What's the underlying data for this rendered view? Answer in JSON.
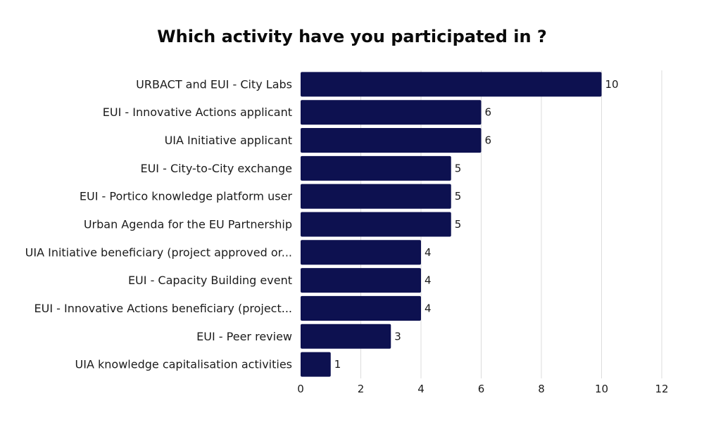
{
  "chart_data": {
    "type": "bar",
    "orientation": "horizontal",
    "title": "Which activity have you participated in ?",
    "xlabel": "",
    "ylabel": "",
    "categories": [
      "URBACT and EUI - City Labs",
      "EUI - Innovative Actions applicant",
      "UIA Initiative applicant",
      "EUI - City-to-City exchange",
      "EUI - Portico knowledge platform user",
      "Urban Agenda for the EU Partnership",
      "UIA Initiative beneficiary (project approved or...",
      "EUI - Capacity Building event",
      "EUI - Innovative Actions beneficiary (project...",
      "EUI - Peer review",
      "UIA knowledge capitalisation activities"
    ],
    "values": [
      10,
      6,
      6,
      5,
      5,
      5,
      4,
      4,
      4,
      3,
      1
    ],
    "xlim": [
      0,
      12
    ],
    "xticks": [
      0,
      2,
      4,
      6,
      8,
      10,
      12
    ],
    "grid": "vertical",
    "legend": "none",
    "colors": {
      "bar": "#0d1150",
      "grid": "#dcdcdc"
    }
  }
}
